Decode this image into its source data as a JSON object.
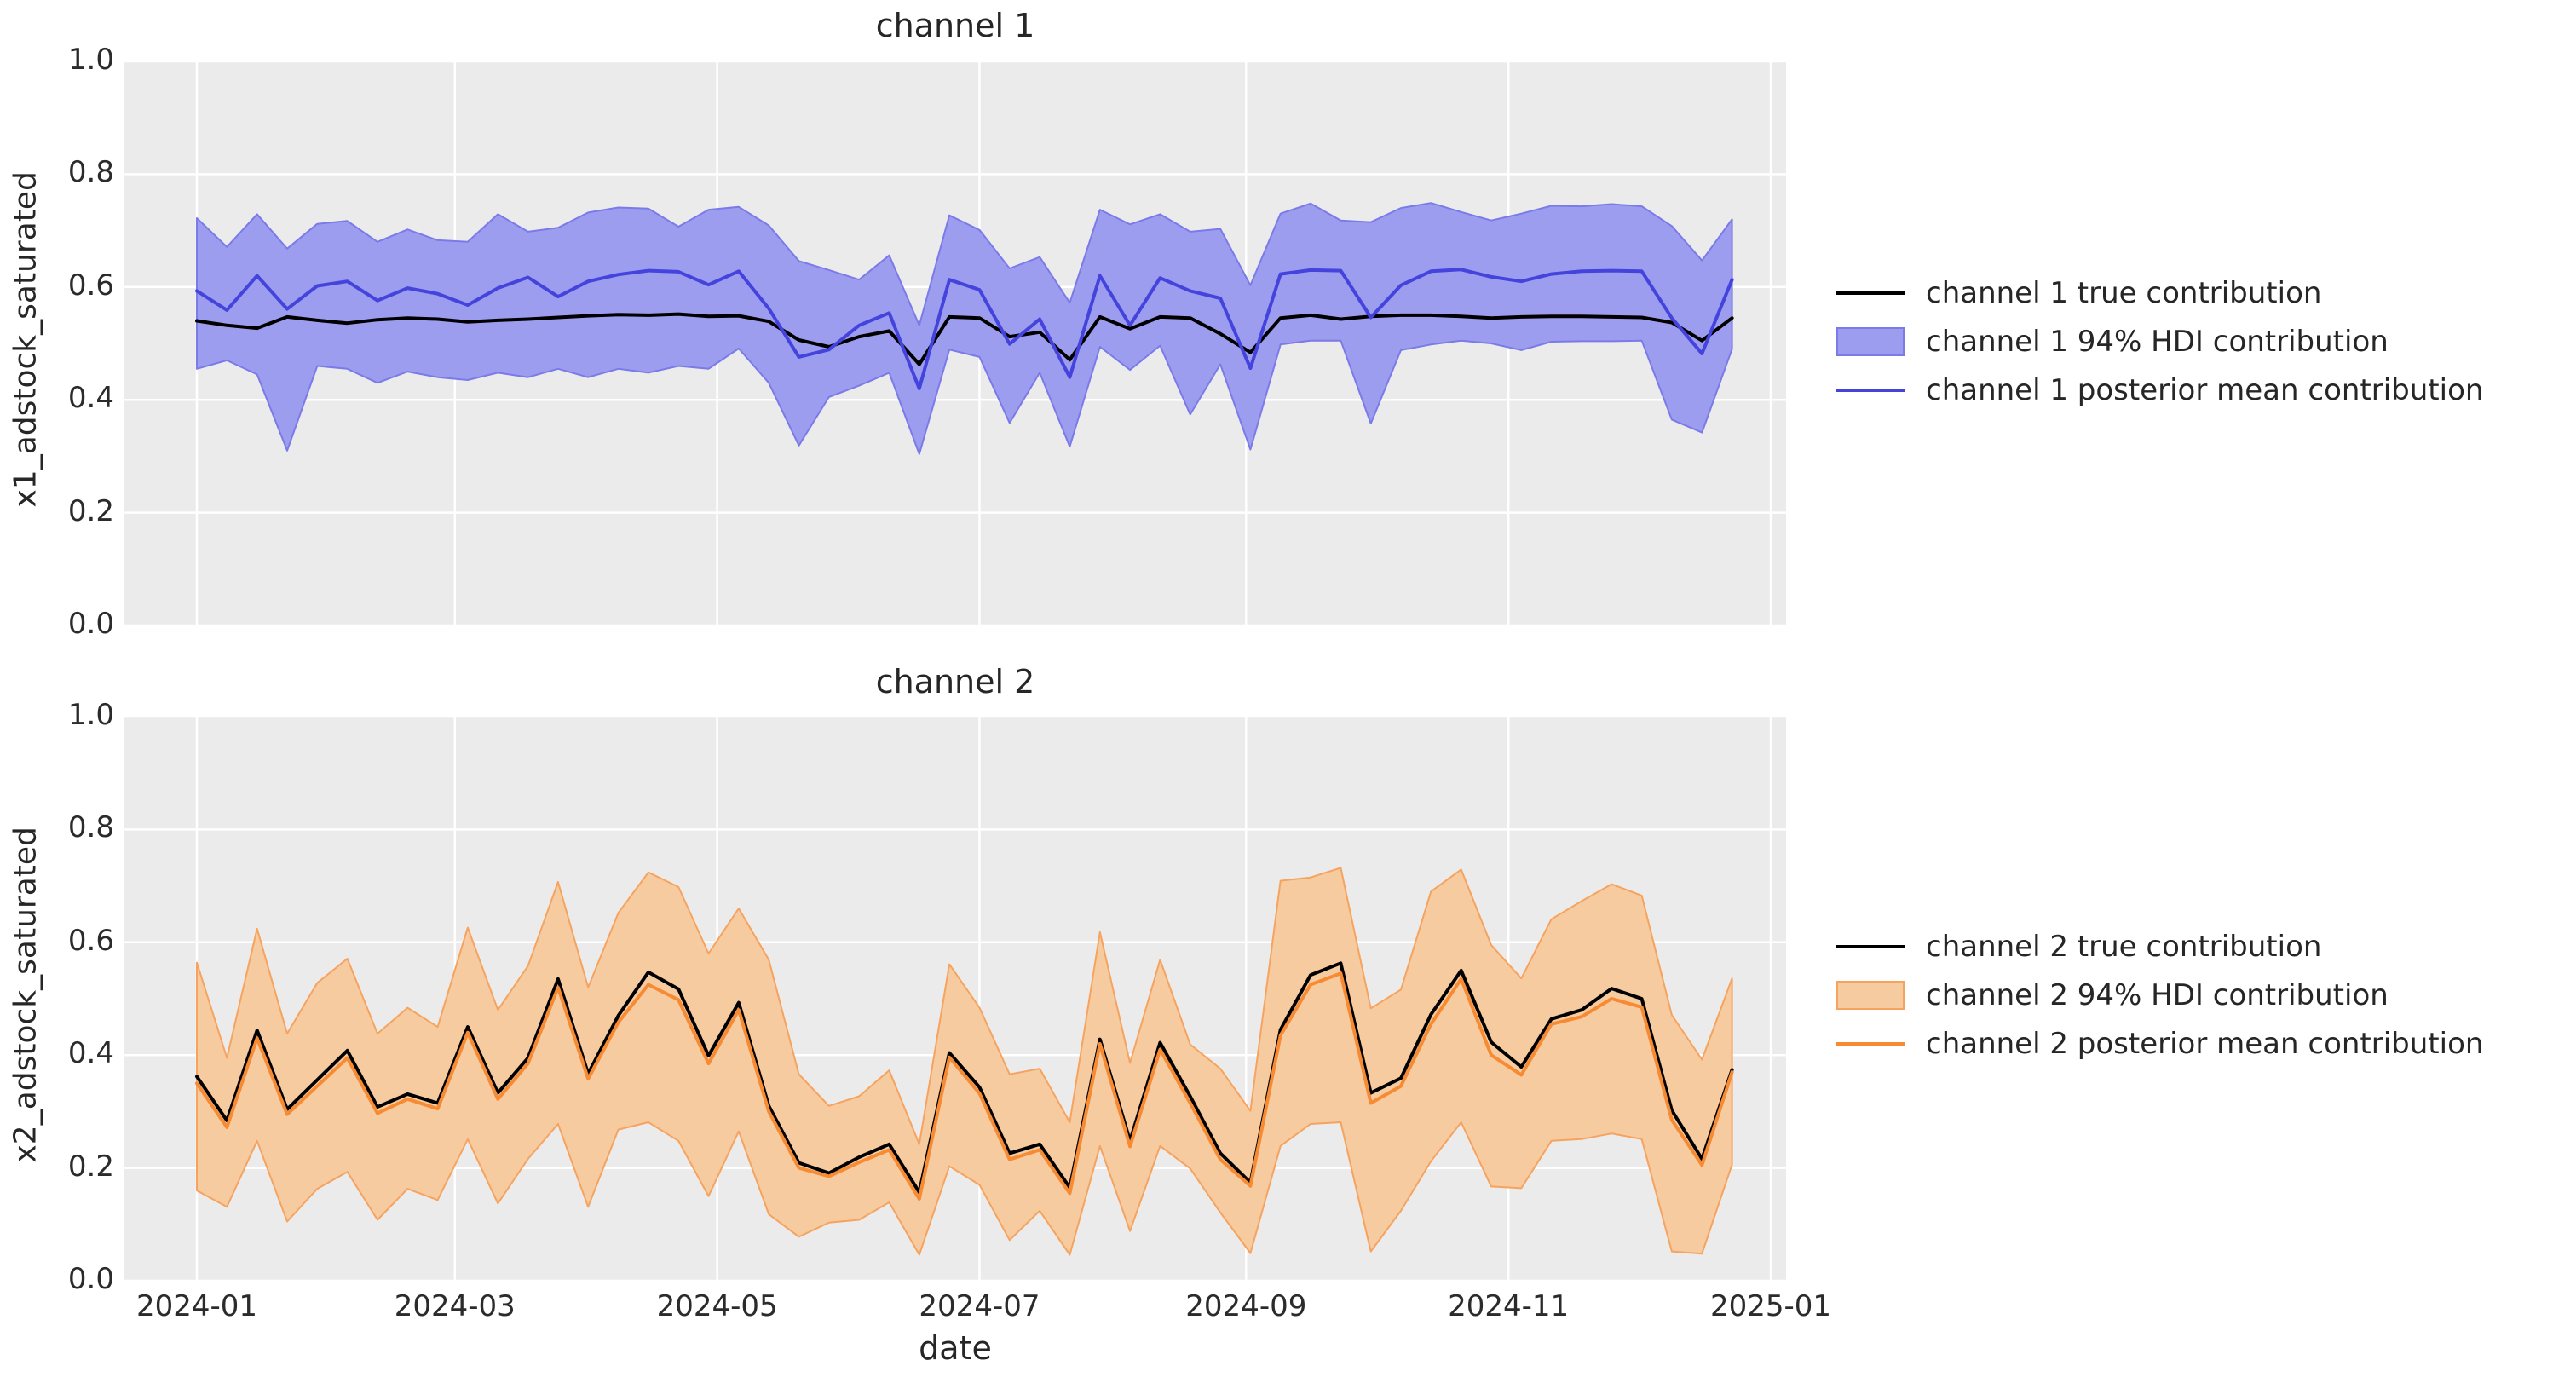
{
  "figure": {
    "background": "#ffffff",
    "plot_background": "#ebebeb",
    "grid_color": "#ffffff",
    "text_color": "#262626"
  },
  "axes": {
    "x_label": "date",
    "x_tick_labels": [
      "2024-01",
      "2024-03",
      "2024-05",
      "2024-07",
      "2024-09",
      "2024-11",
      "2025-01"
    ],
    "x_tick_day_offsets": [
      0,
      60,
      121,
      182,
      244,
      305,
      366
    ],
    "y_tick_labels": [
      "0.0",
      "0.2",
      "0.4",
      "0.6",
      "0.8",
      "1.0"
    ],
    "y_tick_values": [
      0.0,
      0.2,
      0.4,
      0.6,
      0.8,
      1.0
    ]
  },
  "chart_data": [
    {
      "type": "line",
      "title": "channel 1",
      "xlabel": "date",
      "ylabel": "x1_adstock_saturated",
      "ylim": [
        0.0,
        1.0
      ],
      "x_start": "2024-01-01",
      "x_interval_days": 7,
      "n_points": 52,
      "grid": true,
      "legend_position": "right",
      "colors": {
        "true_line": "#000000",
        "mean_line": "#4444dd",
        "band_fill": "#9d9df0",
        "band_edge": "#7a7ae8"
      },
      "series": [
        {
          "name": "channel 1 true contribution",
          "kind": "line",
          "color": "#000000",
          "values": [
            0.54,
            0.532,
            0.527,
            0.547,
            0.541,
            0.536,
            0.542,
            0.545,
            0.543,
            0.538,
            0.541,
            0.543,
            0.546,
            0.549,
            0.551,
            0.55,
            0.552,
            0.548,
            0.549,
            0.539,
            0.506,
            0.494,
            0.512,
            0.522,
            0.463,
            0.547,
            0.545,
            0.512,
            0.52,
            0.471,
            0.547,
            0.526,
            0.547,
            0.545,
            0.517,
            0.484,
            0.545,
            0.55,
            0.543,
            0.548,
            0.55,
            0.55,
            0.548,
            0.545,
            0.547,
            0.548,
            0.548,
            0.547,
            0.546,
            0.537,
            0.505,
            0.545
          ]
        },
        {
          "name": "channel 1 94% HDI contribution",
          "kind": "band",
          "fill": "#9d9df0",
          "edge": "#7a7ae8",
          "low": [
            0.455,
            0.47,
            0.445,
            0.31,
            0.46,
            0.455,
            0.43,
            0.45,
            0.44,
            0.435,
            0.448,
            0.44,
            0.455,
            0.44,
            0.455,
            0.448,
            0.46,
            0.455,
            0.491,
            0.43,
            0.319,
            0.405,
            0.425,
            0.448,
            0.304,
            0.489,
            0.476,
            0.359,
            0.448,
            0.317,
            0.494,
            0.453,
            0.496,
            0.374,
            0.463,
            0.312,
            0.498,
            0.505,
            0.505,
            0.358,
            0.488,
            0.498,
            0.505,
            0.5,
            0.488,
            0.503,
            0.504,
            0.504,
            0.505,
            0.365,
            0.342,
            0.49
          ],
          "high": [
            0.722,
            0.671,
            0.729,
            0.668,
            0.712,
            0.717,
            0.68,
            0.702,
            0.683,
            0.68,
            0.729,
            0.698,
            0.705,
            0.732,
            0.741,
            0.739,
            0.707,
            0.737,
            0.742,
            0.709,
            0.646,
            0.63,
            0.613,
            0.656,
            0.532,
            0.727,
            0.701,
            0.633,
            0.653,
            0.572,
            0.737,
            0.711,
            0.729,
            0.698,
            0.703,
            0.603,
            0.73,
            0.748,
            0.718,
            0.715,
            0.74,
            0.749,
            0.733,
            0.718,
            0.73,
            0.744,
            0.743,
            0.747,
            0.743,
            0.708,
            0.647,
            0.72
          ]
        },
        {
          "name": "channel 1 posterior mean contribution",
          "kind": "line",
          "color": "#4444dd",
          "values": [
            0.593,
            0.559,
            0.62,
            0.561,
            0.602,
            0.61,
            0.576,
            0.598,
            0.588,
            0.568,
            0.598,
            0.617,
            0.583,
            0.61,
            0.622,
            0.629,
            0.627,
            0.604,
            0.628,
            0.562,
            0.476,
            0.489,
            0.532,
            0.554,
            0.42,
            0.613,
            0.595,
            0.499,
            0.543,
            0.44,
            0.62,
            0.532,
            0.616,
            0.593,
            0.58,
            0.456,
            0.623,
            0.63,
            0.629,
            0.546,
            0.603,
            0.628,
            0.631,
            0.618,
            0.61,
            0.623,
            0.628,
            0.629,
            0.628,
            0.545,
            0.482,
            0.613
          ]
        }
      ]
    },
    {
      "type": "line",
      "title": "channel 2",
      "xlabel": "date",
      "ylabel": "x2_adstock_saturated",
      "ylim": [
        0.0,
        1.0
      ],
      "x_start": "2024-01-01",
      "x_interval_days": 7,
      "n_points": 52,
      "grid": true,
      "legend_position": "right",
      "colors": {
        "true_line": "#000000",
        "mean_line": "#f78b33",
        "band_fill": "#f7cba0",
        "band_edge": "#f5a35f"
      },
      "series": [
        {
          "name": "channel 2 true contribution",
          "kind": "line",
          "color": "#000000",
          "values": [
            0.362,
            0.284,
            0.444,
            0.304,
            0.356,
            0.408,
            0.308,
            0.331,
            0.315,
            0.45,
            0.333,
            0.395,
            0.535,
            0.367,
            0.47,
            0.547,
            0.517,
            0.399,
            0.493,
            0.31,
            0.209,
            0.191,
            0.219,
            0.242,
            0.157,
            0.404,
            0.343,
            0.226,
            0.242,
            0.165,
            0.428,
            0.248,
            0.422,
            0.327,
            0.226,
            0.174,
            0.445,
            0.542,
            0.563,
            0.333,
            0.359,
            0.472,
            0.55,
            0.423,
            0.379,
            0.464,
            0.48,
            0.518,
            0.5,
            0.302,
            0.216,
            0.374
          ]
        },
        {
          "name": "channel 2 94% HDI contribution",
          "kind": "band",
          "fill": "#f7cba0",
          "edge": "#f5a35f",
          "low": [
            0.16,
            0.131,
            0.248,
            0.105,
            0.163,
            0.193,
            0.108,
            0.163,
            0.143,
            0.251,
            0.137,
            0.216,
            0.278,
            0.131,
            0.268,
            0.281,
            0.248,
            0.15,
            0.265,
            0.118,
            0.078,
            0.103,
            0.108,
            0.139,
            0.046,
            0.203,
            0.17,
            0.072,
            0.124,
            0.046,
            0.239,
            0.088,
            0.239,
            0.199,
            0.121,
            0.049,
            0.239,
            0.278,
            0.281,
            0.052,
            0.124,
            0.212,
            0.281,
            0.167,
            0.164,
            0.248,
            0.251,
            0.261,
            0.251,
            0.052,
            0.048,
            0.206
          ],
          "high": [
            0.564,
            0.395,
            0.624,
            0.438,
            0.528,
            0.571,
            0.438,
            0.484,
            0.45,
            0.626,
            0.48,
            0.558,
            0.707,
            0.52,
            0.652,
            0.724,
            0.698,
            0.58,
            0.66,
            0.569,
            0.366,
            0.31,
            0.327,
            0.373,
            0.242,
            0.561,
            0.484,
            0.366,
            0.376,
            0.281,
            0.618,
            0.386,
            0.569,
            0.419,
            0.376,
            0.301,
            0.709,
            0.715,
            0.732,
            0.483,
            0.516,
            0.69,
            0.729,
            0.595,
            0.536,
            0.641,
            0.673,
            0.703,
            0.683,
            0.471,
            0.392,
            0.536
          ]
        },
        {
          "name": "channel 2 posterior mean contribution",
          "kind": "line",
          "color": "#f78b33",
          "values": [
            0.35,
            0.272,
            0.43,
            0.295,
            0.345,
            0.395,
            0.297,
            0.322,
            0.305,
            0.44,
            0.322,
            0.385,
            0.52,
            0.358,
            0.458,
            0.525,
            0.498,
            0.385,
            0.48,
            0.3,
            0.2,
            0.185,
            0.21,
            0.232,
            0.145,
            0.396,
            0.332,
            0.215,
            0.232,
            0.155,
            0.42,
            0.238,
            0.41,
            0.315,
            0.215,
            0.168,
            0.435,
            0.525,
            0.545,
            0.315,
            0.345,
            0.455,
            0.535,
            0.4,
            0.365,
            0.455,
            0.468,
            0.5,
            0.485,
            0.285,
            0.205,
            0.37
          ]
        }
      ]
    }
  ]
}
